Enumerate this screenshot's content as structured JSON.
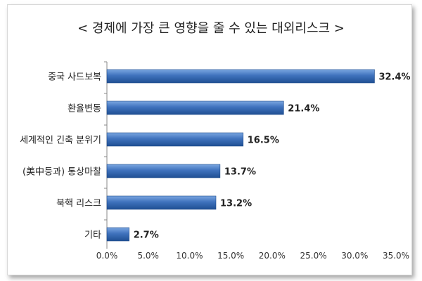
{
  "chart_data": {
    "type": "bar",
    "orientation": "horizontal",
    "title": "< 경제에 가장 큰 영향을 줄 수 있는 대외리스크 >",
    "categories": [
      "중국 사드보복",
      "환율변동",
      "세계적인 긴축 분위기",
      "(美中등과) 통상마찰",
      "북핵 리스크",
      "기타"
    ],
    "values": [
      32.4,
      21.4,
      16.5,
      13.7,
      13.2,
      2.7
    ],
    "value_labels": [
      "32.4%",
      "21.4%",
      "16.5%",
      "13.7%",
      "13.2%",
      "2.7%"
    ],
    "xlim": [
      0,
      35
    ],
    "xticks": [
      "0.0%",
      "5.0%",
      "10.0%",
      "15.0%",
      "20.0%",
      "25.0%",
      "30.0%",
      "35.0%"
    ],
    "xlabel": "",
    "ylabel": "",
    "grid": false,
    "legend": "none",
    "bar_color": "#3a6eb5"
  }
}
